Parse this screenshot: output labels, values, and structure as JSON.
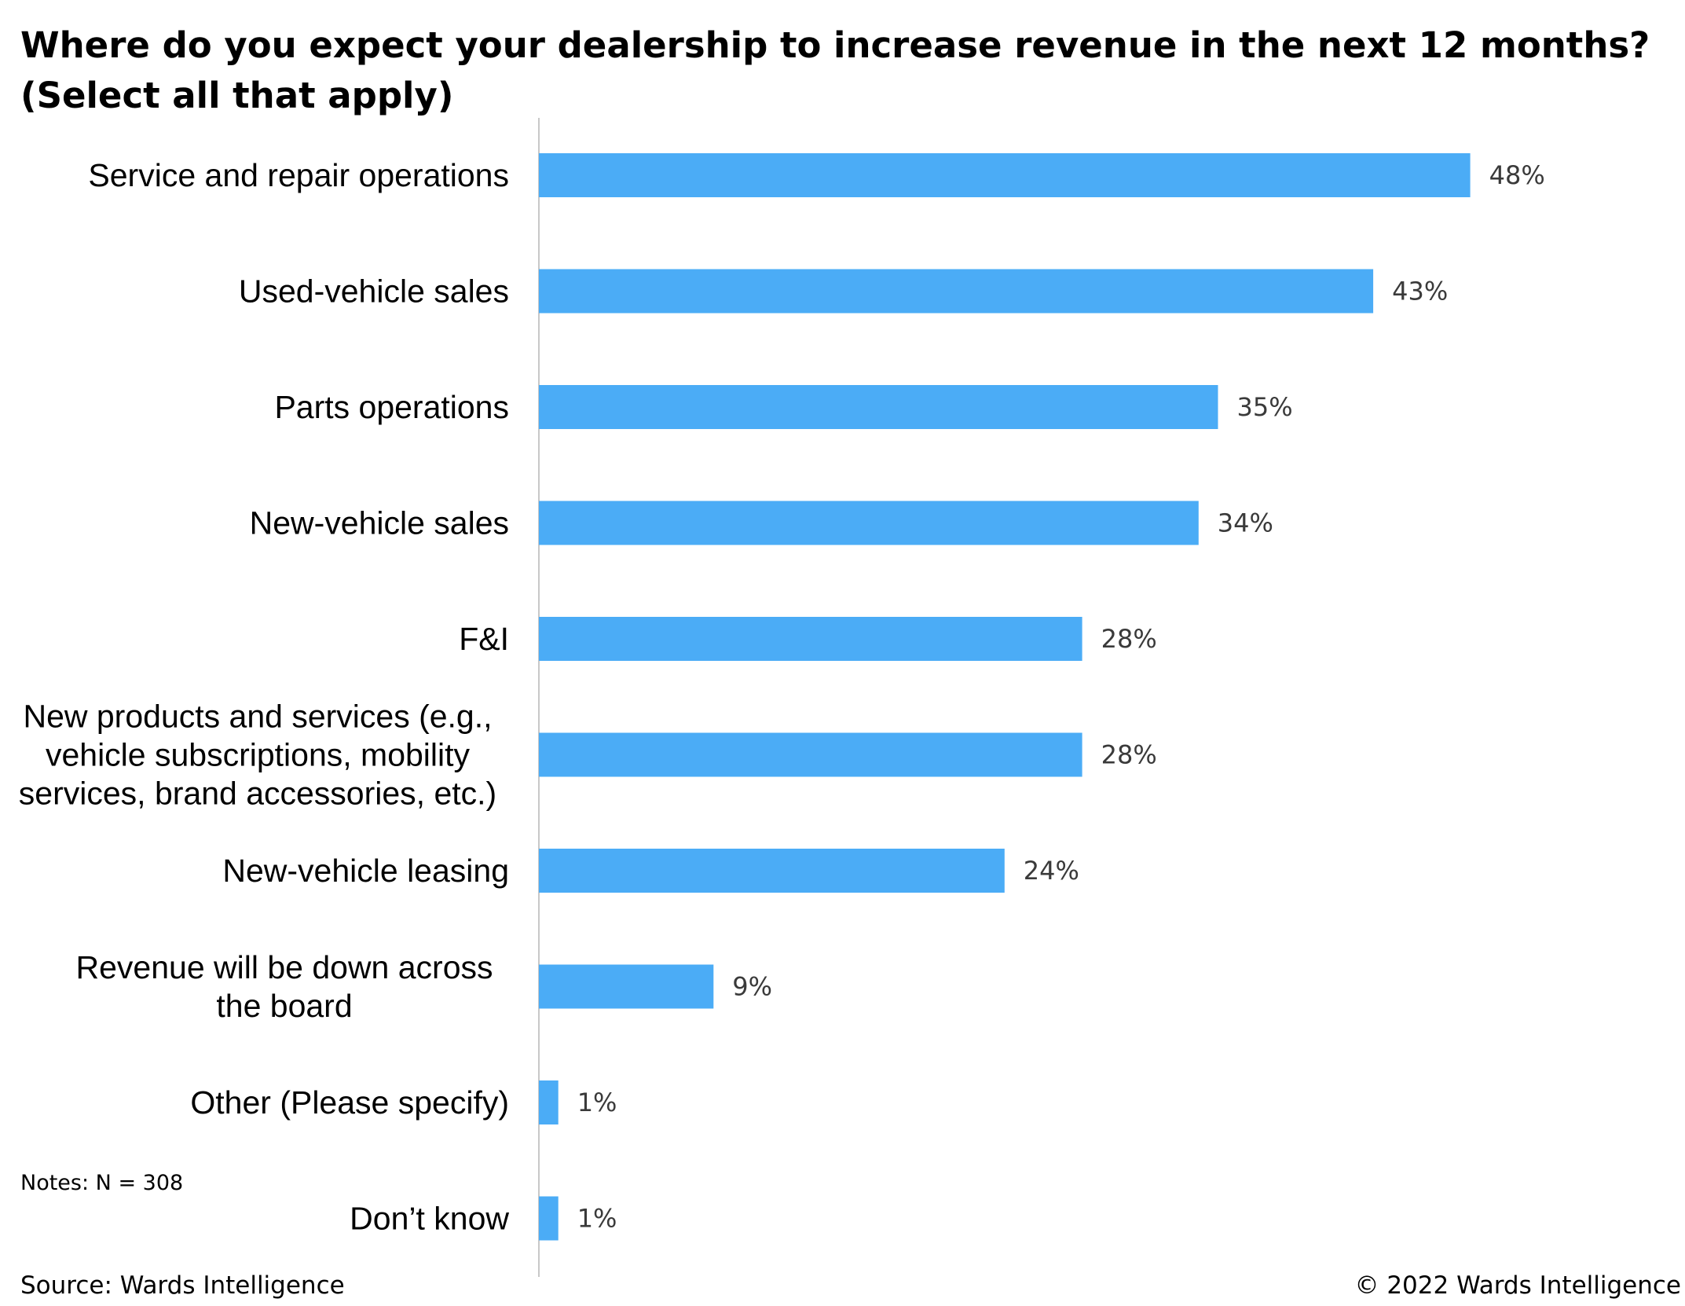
{
  "title": "Where do you expect your dealership to increase revenue in the next 12 months? (Select all that apply)",
  "notes": "Notes: N = 308",
  "source": "Source: Wards Intelligence",
  "copyright": "© 2022 Wards Intelligence",
  "colors": {
    "bar": "#4BACF6",
    "axis": "#C8C8C8",
    "value_label": "#3A3A3A"
  },
  "chart_data": {
    "type": "bar",
    "orientation": "horizontal",
    "title": "Where do you expect your dealership to increase revenue in the next 12 months? (Select all that apply)",
    "categories": [
      [
        "Service and repair operations"
      ],
      [
        "Used-vehicle sales"
      ],
      [
        "Parts operations"
      ],
      [
        "New-vehicle sales"
      ],
      [
        "F&I"
      ],
      [
        "New products and services (e.g.,",
        "vehicle subscriptions, mobility",
        "services, brand accessories, etc.)"
      ],
      [
        "New-vehicle leasing"
      ],
      [
        "Revenue will be down across",
        "the board"
      ],
      [
        "Other (Please specify)"
      ],
      [
        "Don’t know"
      ]
    ],
    "values": [
      48,
      43,
      35,
      34,
      28,
      28,
      24,
      9,
      1,
      1
    ],
    "data_labels": [
      "48%",
      "43%",
      "35%",
      "34%",
      "28%",
      "28%",
      "24%",
      "9%",
      "1%",
      "1%"
    ],
    "unit": "%",
    "xlim": [
      0,
      60
    ],
    "grid": false,
    "legend": "none"
  }
}
